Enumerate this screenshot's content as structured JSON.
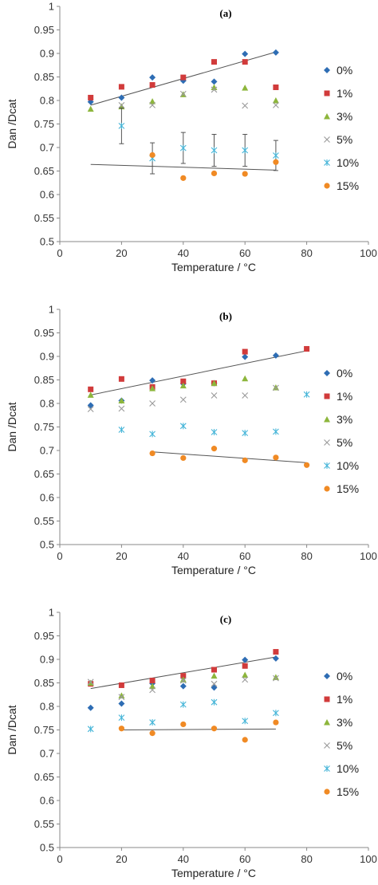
{
  "chart_data": [
    {
      "type": "scatter",
      "panel_label": "(a)",
      "xlabel": "Temperature / °C",
      "ylabel": "Dan /Dcat",
      "xlim": [
        0,
        100
      ],
      "ylim": [
        0.5,
        1
      ],
      "xticks": [
        "0",
        "20",
        "40",
        "60",
        "80",
        "100"
      ],
      "yticks": [
        "0.5",
        "0.55",
        "0.6",
        "0.65",
        "0.7",
        "0.75",
        "0.8",
        "0.85",
        "0.9",
        "0.95",
        "1"
      ],
      "grid": false,
      "legend_position": "right",
      "series": [
        {
          "name": "0%",
          "marker": "diamond",
          "color": "#2E6DB4",
          "x": [
            10,
            20,
            30,
            40,
            50,
            60,
            70
          ],
          "y": [
            0.797,
            0.806,
            0.849,
            0.842,
            0.84,
            0.899,
            0.902
          ]
        },
        {
          "name": "1%",
          "marker": "square",
          "color": "#D13B3B",
          "x": [
            10,
            20,
            30,
            40,
            50,
            60,
            70
          ],
          "y": [
            0.806,
            0.829,
            0.833,
            0.849,
            0.882,
            0.882,
            0.828
          ]
        },
        {
          "name": "3%",
          "marker": "triangle",
          "color": "#8DB63C",
          "x": [
            10,
            20,
            30,
            40,
            50,
            60,
            70
          ],
          "y": [
            0.782,
            0.787,
            0.798,
            0.813,
            0.828,
            0.827,
            0.8
          ]
        },
        {
          "name": "5%",
          "marker": "cross",
          "color": "#9A9A9A",
          "x": [
            20,
            30,
            40,
            50,
            60,
            70
          ],
          "y": [
            0.79,
            0.79,
            0.814,
            0.823,
            0.789,
            0.79
          ]
        },
        {
          "name": "10%",
          "marker": "asterisk",
          "color": "#45B5D8",
          "x": [
            20,
            30,
            40,
            50,
            60,
            70
          ],
          "y": [
            0.746,
            0.677,
            0.699,
            0.694,
            0.694,
            0.683
          ],
          "yerr": [
            0.038,
            0.033,
            0.033,
            0.034,
            0.034,
            0.032
          ]
        },
        {
          "name": "15%",
          "marker": "circle",
          "color": "#F08A24",
          "x": [
            30,
            40,
            50,
            60,
            70
          ],
          "y": [
            0.684,
            0.635,
            0.645,
            0.644,
            0.669
          ]
        }
      ],
      "trendlines": [
        {
          "x": [
            10,
            70
          ],
          "y": [
            0.79,
            0.903
          ]
        },
        {
          "x": [
            10,
            70
          ],
          "y": [
            0.664,
            0.652
          ]
        }
      ]
    },
    {
      "type": "scatter",
      "panel_label": "(b)",
      "xlabel": "Temperature / °C",
      "ylabel": "Dan /Dcat",
      "xlim": [
        0,
        100
      ],
      "ylim": [
        0.5,
        1
      ],
      "xticks": [
        "0",
        "20",
        "40",
        "60",
        "80",
        "100"
      ],
      "yticks": [
        "0.5",
        "0.55",
        "0.6",
        "0.65",
        "0.7",
        "0.75",
        "0.8",
        "0.85",
        "0.9",
        "0.95",
        "1"
      ],
      "grid": false,
      "legend_position": "right",
      "series": [
        {
          "name": "0%",
          "marker": "diamond",
          "color": "#2E6DB4",
          "x": [
            10,
            20,
            30,
            40,
            50,
            60,
            70
          ],
          "y": [
            0.796,
            0.806,
            0.849,
            0.842,
            0.843,
            0.899,
            0.902
          ]
        },
        {
          "name": "1%",
          "marker": "square",
          "color": "#D13B3B",
          "x": [
            10,
            20,
            30,
            40,
            50,
            60,
            80
          ],
          "y": [
            0.83,
            0.852,
            0.835,
            0.847,
            0.843,
            0.91,
            0.916
          ]
        },
        {
          "name": "3%",
          "marker": "triangle",
          "color": "#8DB63C",
          "x": [
            10,
            20,
            30,
            40,
            50,
            60,
            70
          ],
          "y": [
            0.818,
            0.806,
            0.832,
            0.838,
            0.843,
            0.853,
            0.834
          ]
        },
        {
          "name": "5%",
          "marker": "cross",
          "color": "#9A9A9A",
          "x": [
            10,
            20,
            30,
            40,
            50,
            60,
            70
          ],
          "y": [
            0.788,
            0.789,
            0.8,
            0.808,
            0.817,
            0.817,
            0.833
          ]
        },
        {
          "name": "10%",
          "marker": "asterisk",
          "color": "#45B5D8",
          "x": [
            20,
            30,
            40,
            50,
            60,
            70,
            80
          ],
          "y": [
            0.744,
            0.735,
            0.752,
            0.739,
            0.737,
            0.74,
            0.819
          ]
        },
        {
          "name": "15%",
          "marker": "circle",
          "color": "#F08A24",
          "x": [
            30,
            40,
            50,
            60,
            70,
            80
          ],
          "y": [
            0.694,
            0.684,
            0.704,
            0.679,
            0.685,
            0.669
          ]
        }
      ],
      "trendlines": [
        {
          "x": [
            10,
            80
          ],
          "y": [
            0.818,
            0.912
          ]
        },
        {
          "x": [
            30,
            80
          ],
          "y": [
            0.697,
            0.674
          ]
        }
      ]
    },
    {
      "type": "scatter",
      "panel_label": "(c)",
      "xlabel": "Temperature / °C",
      "ylabel": "Dan /Dcat",
      "xlim": [
        0,
        100
      ],
      "ylim": [
        0.5,
        1
      ],
      "xticks": [
        "0",
        "20",
        "40",
        "60",
        "80",
        "100"
      ],
      "yticks": [
        "0.5",
        "0.55",
        "0.6",
        "0.65",
        "0.7",
        "0.75",
        "0.8",
        "0.85",
        "0.9",
        "0.95",
        "1"
      ],
      "grid": false,
      "legend_position": "right",
      "series": [
        {
          "name": "0%",
          "marker": "diamond",
          "color": "#2E6DB4",
          "x": [
            10,
            20,
            30,
            40,
            50,
            60,
            70
          ],
          "y": [
            0.797,
            0.806,
            0.849,
            0.843,
            0.84,
            0.899,
            0.902
          ]
        },
        {
          "name": "1%",
          "marker": "square",
          "color": "#D13B3B",
          "x": [
            10,
            20,
            30,
            40,
            50,
            60,
            70
          ],
          "y": [
            0.848,
            0.845,
            0.855,
            0.865,
            0.878,
            0.886,
            0.916
          ]
        },
        {
          "name": "3%",
          "marker": "triangle",
          "color": "#8DB63C",
          "x": [
            10,
            20,
            30,
            40,
            50,
            60,
            70
          ],
          "y": [
            0.85,
            0.823,
            0.843,
            0.857,
            0.865,
            0.867,
            0.862
          ]
        },
        {
          "name": "5%",
          "marker": "cross",
          "color": "#9A9A9A",
          "x": [
            10,
            20,
            30,
            40,
            50,
            60,
            70
          ],
          "y": [
            0.852,
            0.82,
            0.835,
            0.855,
            0.848,
            0.857,
            0.86
          ]
        },
        {
          "name": "10%",
          "marker": "asterisk",
          "color": "#45B5D8",
          "x": [
            10,
            20,
            30,
            40,
            50,
            60,
            70
          ],
          "y": [
            0.752,
            0.776,
            0.766,
            0.804,
            0.809,
            0.769,
            0.786
          ]
        },
        {
          "name": "15%",
          "marker": "circle",
          "color": "#F08A24",
          "x": [
            20,
            30,
            40,
            50,
            60,
            70
          ],
          "y": [
            0.753,
            0.743,
            0.762,
            0.753,
            0.729,
            0.766
          ]
        }
      ],
      "trendlines": [
        {
          "x": [
            10,
            70
          ],
          "y": [
            0.838,
            0.905
          ]
        },
        {
          "x": [
            20,
            70
          ],
          "y": [
            0.75,
            0.752
          ]
        }
      ]
    }
  ]
}
